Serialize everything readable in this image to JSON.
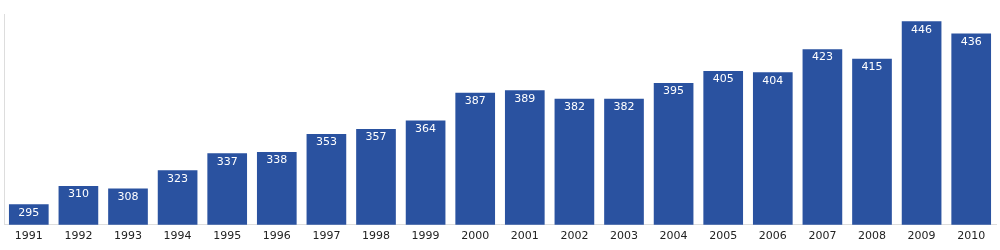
{
  "chart_data": {
    "type": "bar",
    "categories": [
      "1991",
      "1992",
      "1993",
      "1994",
      "1995",
      "1996",
      "1997",
      "1998",
      "1999",
      "2000",
      "2001",
      "2002",
      "2003",
      "2004",
      "2005",
      "2006",
      "2007",
      "2008",
      "2009",
      "2010"
    ],
    "values": [
      295,
      310,
      308,
      323,
      337,
      338,
      353,
      357,
      364,
      387,
      389,
      382,
      382,
      395,
      405,
      404,
      423,
      415,
      446,
      436
    ],
    "color": "#2a52a0",
    "ylim": [
      278,
      452
    ],
    "grid": false,
    "data_labels": true,
    "tick_labels": "x"
  }
}
